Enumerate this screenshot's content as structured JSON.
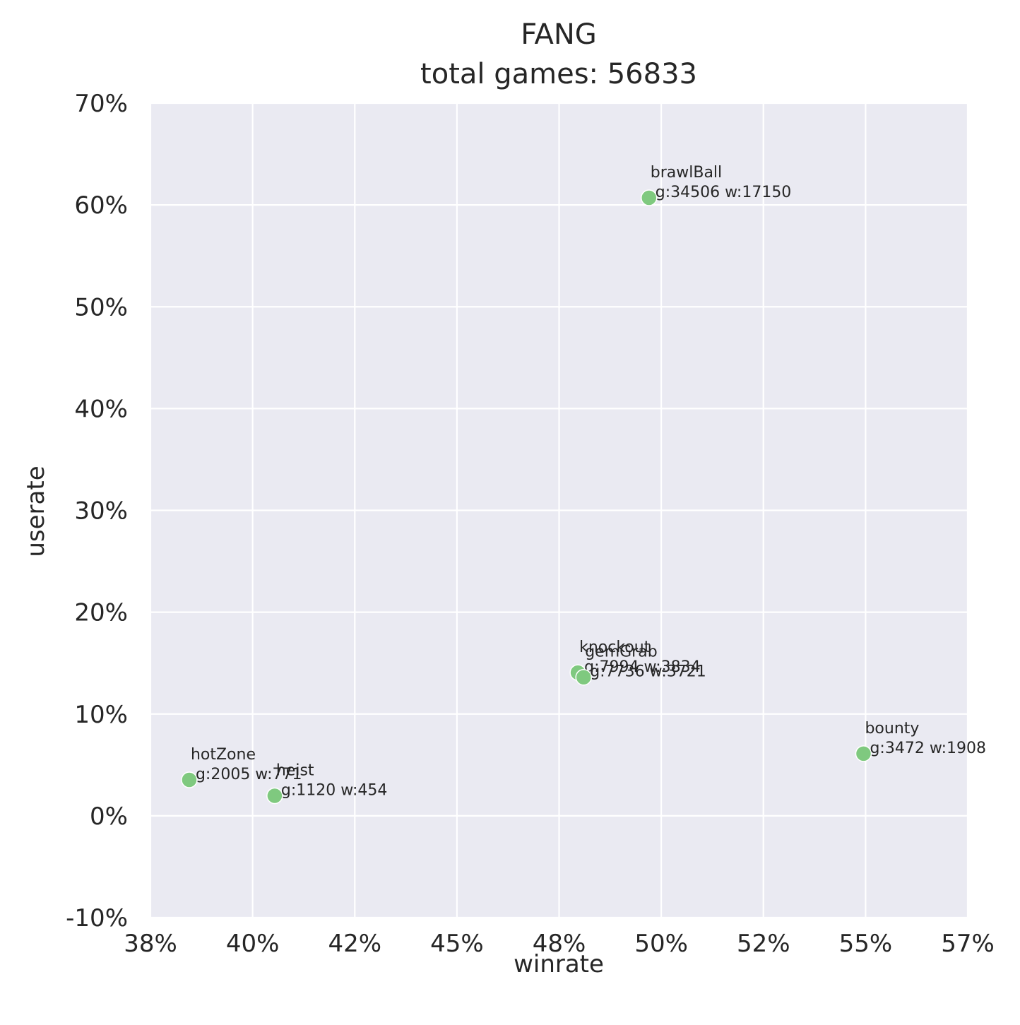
{
  "chart_data": {
    "type": "scatter",
    "title": "FANG",
    "subtitle": "total games: 56833",
    "xlabel": "winrate",
    "ylabel": "userate",
    "xlim": [
      0.375,
      0.575
    ],
    "ylim": [
      -0.1,
      0.7
    ],
    "x_ticks": [
      0.375,
      0.4,
      0.425,
      0.45,
      0.475,
      0.5,
      0.525,
      0.55,
      0.575
    ],
    "x_tick_labels": [
      "38%",
      "40%",
      "42%",
      "45%",
      "48%",
      "50%",
      "52%",
      "55%",
      "57%"
    ],
    "y_ticks": [
      -0.1,
      0.0,
      0.1,
      0.2,
      0.3,
      0.4,
      0.5,
      0.6,
      0.7
    ],
    "y_tick_labels": [
      "-10%",
      "0%",
      "10%",
      "20%",
      "30%",
      "40%",
      "50%",
      "60%",
      "70%"
    ],
    "grid": true,
    "point_color": "#7fc97f",
    "background_color": "#eaeaf2",
    "points": [
      {
        "name": "brawlBall",
        "stats": "g:34506 w:17150",
        "x": 0.497,
        "y": 0.607
      },
      {
        "name": "knockout",
        "stats": "g:7994 w:3834",
        "x": 0.4796,
        "y": 0.1407
      },
      {
        "name": "gemGrab",
        "stats": "g:7736 w:3721",
        "x": 0.481,
        "y": 0.1361
      },
      {
        "name": "bounty",
        "stats": "g:3472 w:1908",
        "x": 0.5495,
        "y": 0.0611
      },
      {
        "name": "hotZone",
        "stats": "g:2005 w:771",
        "x": 0.3845,
        "y": 0.0353
      },
      {
        "name": "heist",
        "stats": "g:1120 w:454",
        "x": 0.4054,
        "y": 0.0197
      }
    ]
  }
}
